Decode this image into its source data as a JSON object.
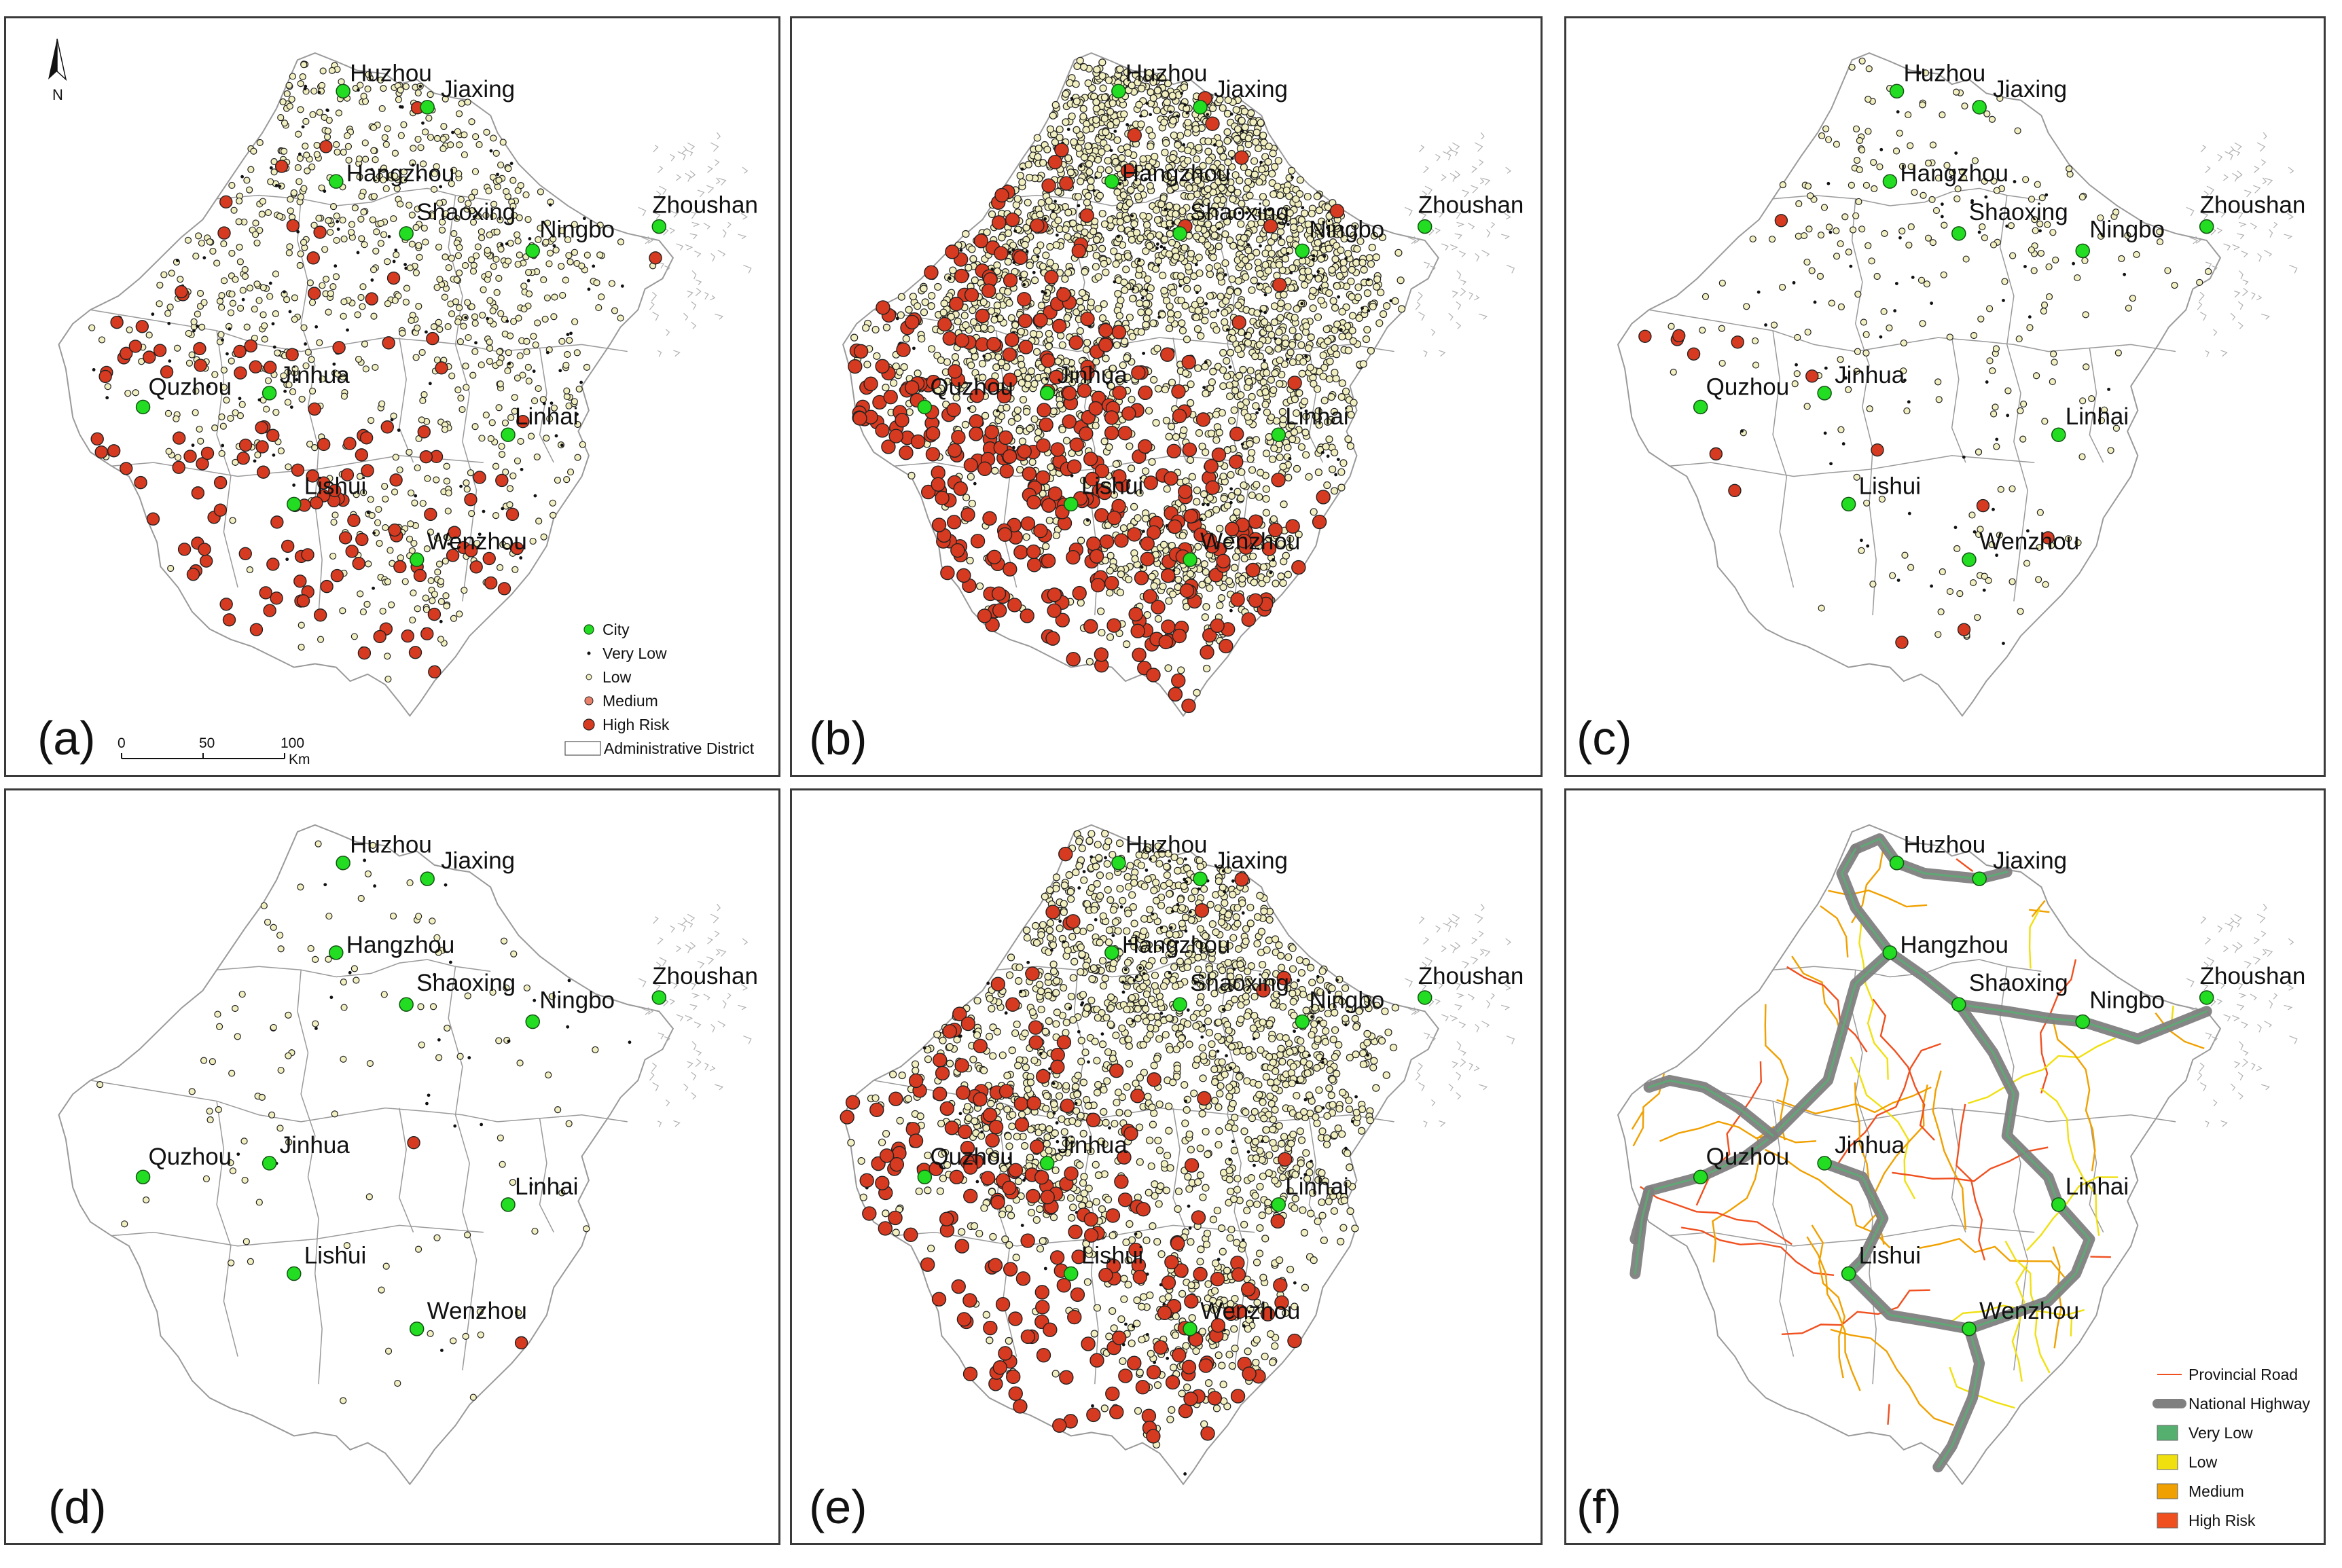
{
  "panels": [
    {
      "id": "a",
      "label": "(a)",
      "pattern": "all"
    },
    {
      "id": "b",
      "label": "(b)",
      "pattern": "dense"
    },
    {
      "id": "c",
      "label": "(c)",
      "pattern": "sparse"
    },
    {
      "id": "d",
      "label": "(d)",
      "pattern": "minimal"
    },
    {
      "id": "e",
      "label": "(e)",
      "pattern": "mixed"
    },
    {
      "id": "f",
      "label": "(f)",
      "pattern": "roads"
    }
  ],
  "cities": [
    "Huzhou",
    "Jiaxing",
    "Hangzhou",
    "Shaoxing",
    "Ningbo",
    "Zhoushan",
    "Quzhou",
    "Jinhua",
    "Linhai",
    "Lishui",
    "Wenzhou"
  ],
  "north_arrow": "N",
  "legend_points": [
    {
      "label": "City",
      "key": "city"
    },
    {
      "label": "Very Low",
      "key": "verylow"
    },
    {
      "label": "Low",
      "key": "low"
    },
    {
      "label": "Medium",
      "key": "medium"
    },
    {
      "label": "High Risk",
      "key": "high"
    },
    {
      "label": "Administrative District",
      "key": "district"
    }
  ],
  "scale_bar": {
    "ticks": [
      "0",
      "50",
      "100"
    ],
    "unit": "Km"
  },
  "legend_roads": [
    {
      "label": "Provincial Road",
      "key": "provincial"
    },
    {
      "label": "National Highway",
      "key": "national"
    },
    {
      "label": "Very Low",
      "key": "verylow"
    },
    {
      "label": "Low",
      "key": "low"
    },
    {
      "label": "Medium",
      "key": "medium"
    },
    {
      "label": "High Risk",
      "key": "high"
    }
  ],
  "colors": {
    "city": "#22dd22",
    "very_low": "#111111",
    "low": "#f2f0c0",
    "medium": "#e8806a",
    "high_risk": "#d63a20",
    "border": "#9a9a9a",
    "national_highway": "#808080",
    "road_very_low": "#55b070",
    "road_low": "#f0e010",
    "road_medium": "#f0a000",
    "road_high_risk": "#f05020"
  }
}
